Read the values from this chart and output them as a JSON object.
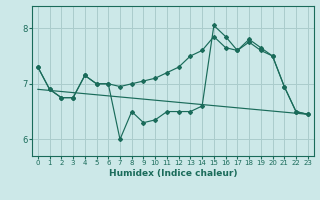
{
  "xlabel": "Humidex (Indice chaleur)",
  "bg_color": "#cce8e8",
  "grid_color": "#aacccc",
  "line_color": "#1a6b5a",
  "xlim": [
    -0.5,
    23.5
  ],
  "ylim": [
    5.7,
    8.4
  ],
  "yticks": [
    6,
    7,
    8
  ],
  "xticks": [
    0,
    1,
    2,
    3,
    4,
    5,
    6,
    7,
    8,
    9,
    10,
    11,
    12,
    13,
    14,
    15,
    16,
    17,
    18,
    19,
    20,
    21,
    22,
    23
  ],
  "line_up_x": [
    0,
    1,
    2,
    3,
    4,
    5,
    6,
    7,
    8,
    9,
    10,
    11,
    12,
    13,
    14,
    15,
    16,
    17,
    18,
    19,
    20,
    21,
    22,
    23
  ],
  "line_up_y": [
    7.3,
    6.9,
    6.75,
    6.75,
    7.15,
    7.0,
    7.0,
    6.95,
    7.0,
    7.05,
    7.1,
    7.2,
    7.3,
    7.5,
    7.6,
    7.85,
    7.65,
    7.6,
    7.75,
    7.6,
    7.5,
    6.95,
    6.5,
    6.45
  ],
  "line_down_x": [
    0,
    1,
    2,
    3,
    4,
    5,
    6,
    7,
    8,
    9,
    10,
    11,
    12,
    13,
    14,
    15,
    16,
    17,
    18,
    19,
    20,
    21,
    22,
    23
  ],
  "line_down_y": [
    7.3,
    6.9,
    6.75,
    6.75,
    7.15,
    7.0,
    7.0,
    6.0,
    6.5,
    6.3,
    6.35,
    6.5,
    6.5,
    6.5,
    6.6,
    8.05,
    7.85,
    7.6,
    7.8,
    7.65,
    7.5,
    6.95,
    6.5,
    6.45
  ],
  "trend_x": [
    0,
    23
  ],
  "trend_y": [
    6.9,
    6.45
  ]
}
